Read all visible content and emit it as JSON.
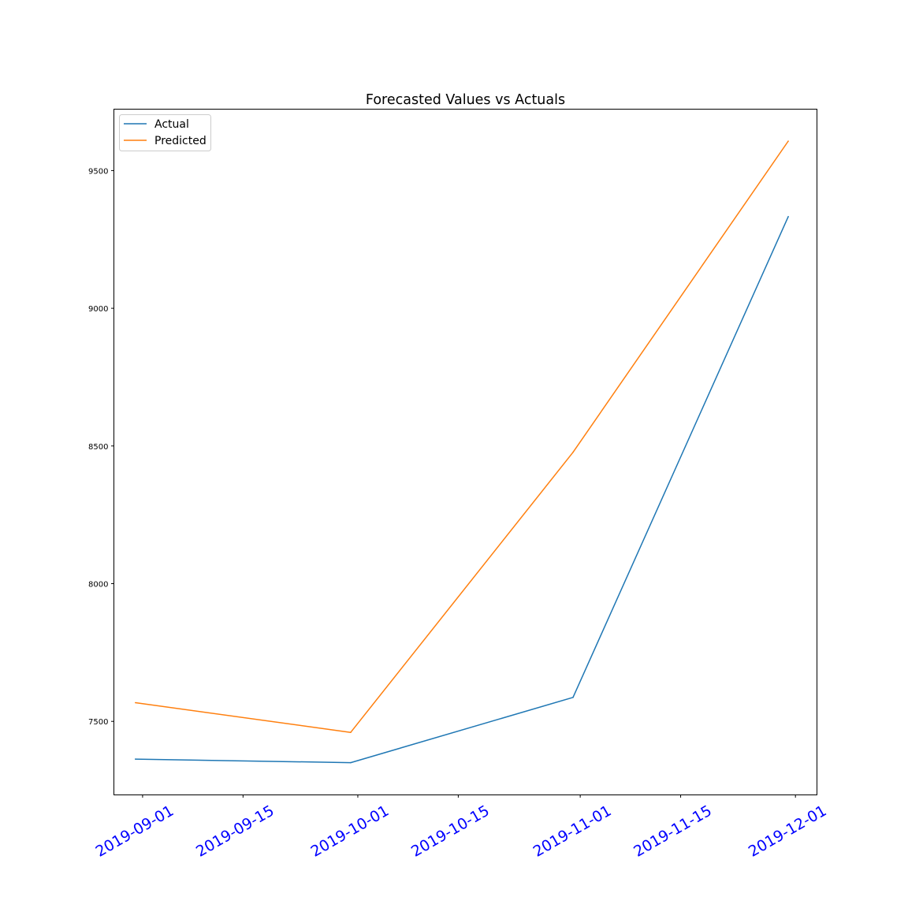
{
  "chart_data": {
    "type": "line",
    "title": "Forecasted Values vs Actuals",
    "xlabel": "",
    "ylabel": "",
    "x_type": "date",
    "xlim": [
      "2019-08-28",
      "2019-12-04"
    ],
    "ylim": [
      7233,
      9723
    ],
    "x_ticks": [
      "2019-09-01",
      "2019-09-15",
      "2019-10-01",
      "2019-10-15",
      "2019-11-01",
      "2019-11-15",
      "2019-12-01"
    ],
    "y_ticks": [
      7500,
      8000,
      8500,
      9000,
      9500
    ],
    "y_tick_labels": [
      "7500",
      "8000",
      "8500",
      "9000",
      "9500"
    ],
    "x_tick_color": "#0000ff",
    "grid": false,
    "legend": "upper left",
    "x": [
      "2019-08-31",
      "2019-09-30",
      "2019-10-31",
      "2019-11-30"
    ],
    "series": [
      {
        "name": "Actual",
        "color": "#1f77b4",
        "values": [
          7363,
          7350,
          7587,
          9333
        ]
      },
      {
        "name": "Predicted",
        "color": "#ff7f0e",
        "values": [
          7568,
          7460,
          8477,
          9607
        ]
      }
    ]
  }
}
